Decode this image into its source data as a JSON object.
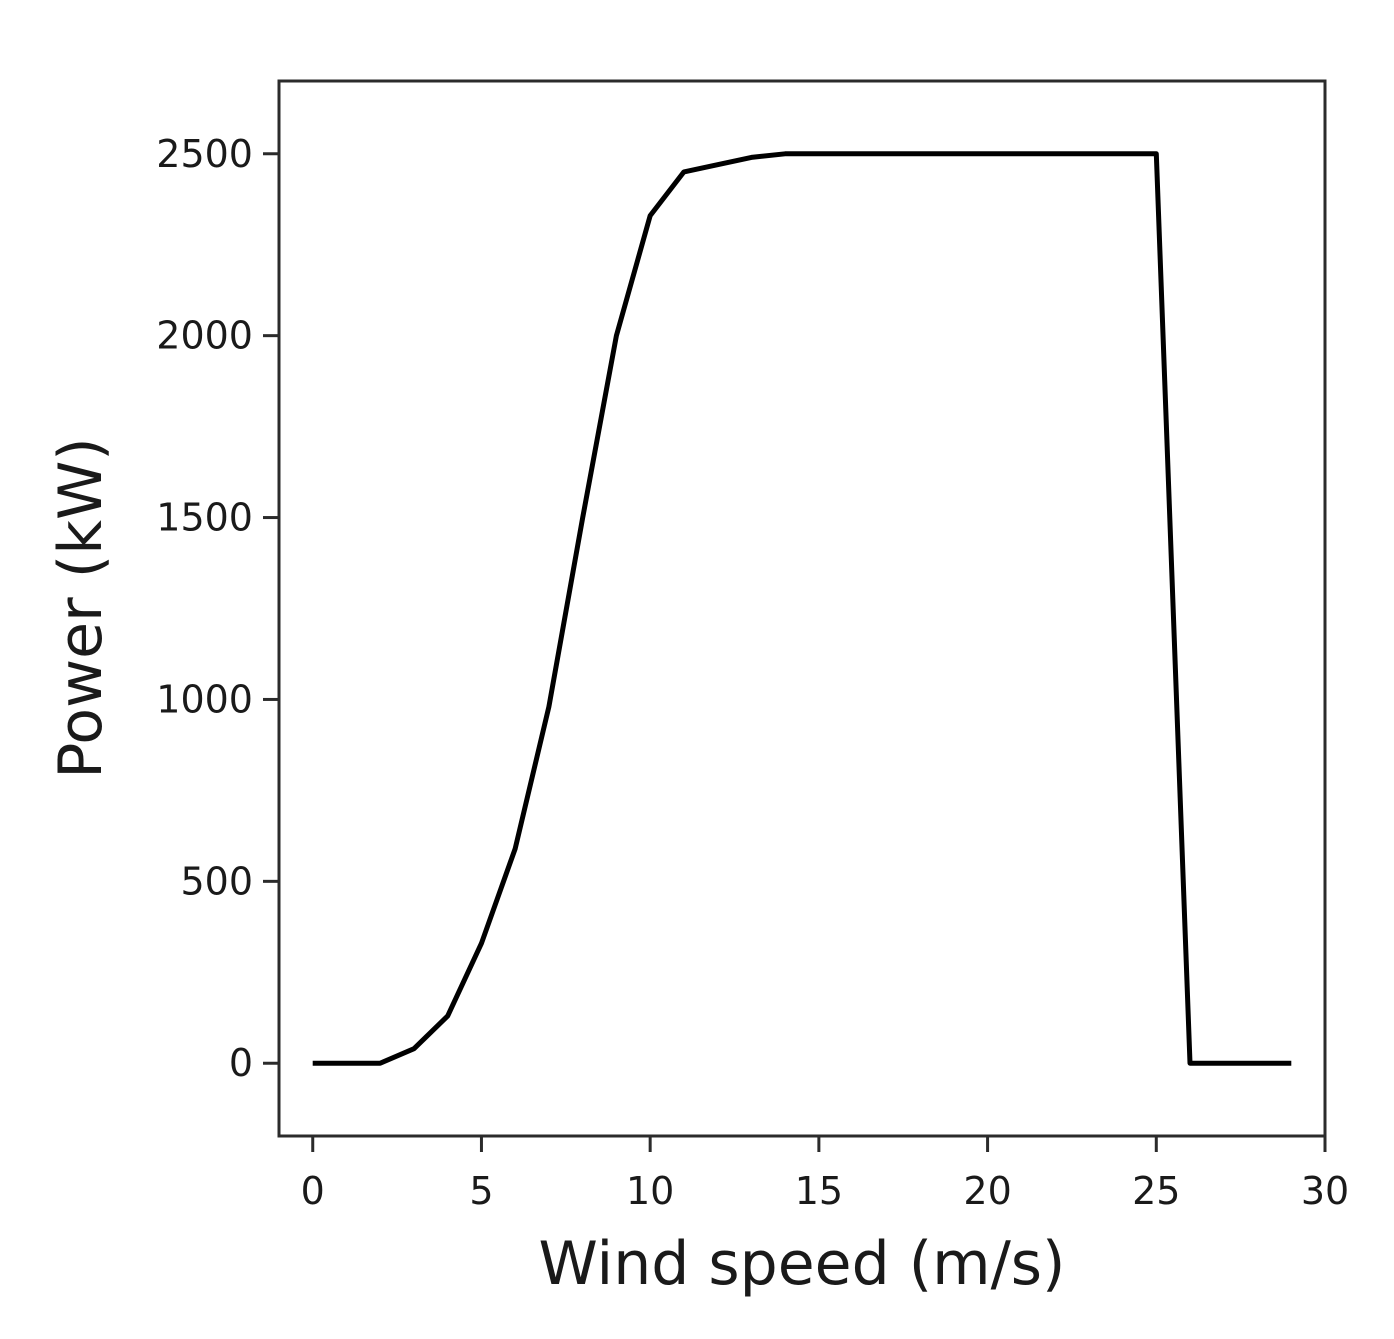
{
  "chart_data": {
    "type": "line",
    "title": "",
    "xlabel": "Wind speed (m/s)",
    "ylabel": "Power (kW)",
    "xlim": [
      -1,
      30
    ],
    "ylim": [
      -200,
      2700
    ],
    "xticks": [
      0,
      5,
      10,
      15,
      20,
      25,
      30
    ],
    "yticks": [
      0,
      500,
      1000,
      1500,
      2000,
      2500
    ],
    "grid": false,
    "legend": "none",
    "line_color": "#000000",
    "series": [
      {
        "x": [
          0,
          1,
          2,
          3,
          4,
          5,
          6,
          7,
          8,
          9,
          10,
          11,
          12,
          13,
          14,
          15,
          16,
          17,
          18,
          19,
          20,
          21,
          22,
          23,
          24,
          25,
          26,
          27,
          28,
          29
        ],
        "y": [
          0,
          0,
          0,
          40,
          130,
          330,
          590,
          980,
          1500,
          2000,
          2330,
          2450,
          2470,
          2490,
          2500,
          2500,
          2500,
          2500,
          2500,
          2500,
          2500,
          2500,
          2500,
          2500,
          2500,
          2500,
          0,
          0,
          0,
          0
        ]
      }
    ]
  }
}
